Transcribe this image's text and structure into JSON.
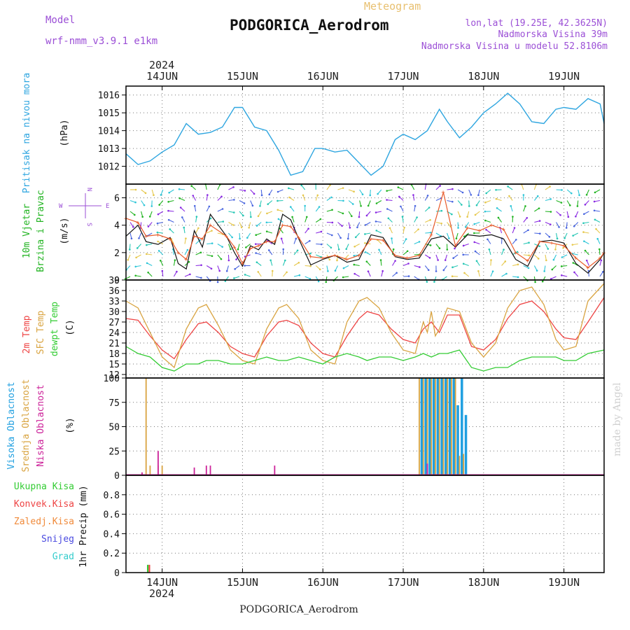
{
  "header": {
    "meteogram_label": "Meteogram",
    "model_label": "Model",
    "model_name": "wrf-nmm_v3.9.1  e1km",
    "station": "PODGORICA_Aerodrom",
    "lonlat": "lon,lat (19.25E, 42.3625N)",
    "elevation": "Nadmorska Visina 39m",
    "model_elevation": "Nadmorska Visina u modelu 52.8106m",
    "footer_station": "PODGORICA_Aerodrom",
    "watermark": "made by Angel",
    "year_top": "2024",
    "year_bottom": "2024"
  },
  "colors": {
    "pressure": "#2fa6e0",
    "wind_label": "#22b422",
    "temp2m": "#ee4444",
    "sfc_temp": "#d9a441",
    "dewpt": "#33cc33",
    "high_cloud": "#1f9fe0",
    "mid_cloud": "#d9a441",
    "low_cloud": "#cc2299",
    "accent_purple": "#9b4fd6",
    "meteogram_title": "#e8c070"
  },
  "chart_data": [
    {
      "type": "line",
      "name": "pressure",
      "labels": [
        "Pritisak na nivou mora",
        "(hPa)"
      ],
      "ylim": [
        1011,
        1016.5
      ],
      "yticks": [
        1012,
        1013,
        1014,
        1015,
        1016
      ],
      "x_ticks": [
        "14JUN",
        "15JUN",
        "16JUN",
        "17JUN",
        "18JUN",
        "19JUN"
      ],
      "x": [
        13.55,
        13.7,
        13.85,
        14.0,
        14.15,
        14.3,
        14.45,
        14.6,
        14.75,
        14.9,
        15.0,
        15.15,
        15.3,
        15.45,
        15.6,
        15.75,
        15.9,
        16.0,
        16.15,
        16.3,
        16.45,
        16.6,
        16.75,
        16.9,
        17.0,
        17.15,
        17.3,
        17.45,
        17.55,
        17.7,
        17.85,
        18.0,
        18.15,
        18.3,
        18.45,
        18.6,
        18.75,
        18.9,
        19.0,
        19.15,
        19.3,
        19.45,
        19.5
      ],
      "values": [
        1012.7,
        1012.1,
        1012.3,
        1012.8,
        1013.2,
        1014.4,
        1013.8,
        1013.9,
        1014.2,
        1015.3,
        1015.3,
        1014.2,
        1014.0,
        1012.9,
        1011.5,
        1011.7,
        1013.0,
        1013.0,
        1012.8,
        1012.9,
        1012.2,
        1011.5,
        1012.0,
        1013.5,
        1013.8,
        1013.5,
        1014.0,
        1015.2,
        1014.5,
        1013.6,
        1014.2,
        1015.0,
        1015.5,
        1016.1,
        1015.5,
        1014.5,
        1014.4,
        1015.2,
        1015.3,
        1015.2,
        1015.8,
        1015.5,
        1014.4
      ]
    },
    {
      "type": "line",
      "name": "wind",
      "labels": [
        "10m Vjetar",
        "Brzina i Pravac",
        "(m/s)"
      ],
      "compass": [
        "N",
        "W",
        "E",
        "S"
      ],
      "ylim": [
        0,
        7
      ],
      "yticks": [
        0,
        2,
        4,
        6
      ],
      "series": [
        {
          "x": [
            13.55,
            13.7,
            13.8,
            13.95,
            14.1,
            14.2,
            14.3,
            14.4,
            14.5,
            14.6,
            14.8,
            14.9,
            15.0,
            15.1,
            15.2,
            15.3,
            15.4,
            15.5,
            15.6,
            15.7,
            15.85,
            16.0,
            16.15,
            16.3,
            16.45,
            16.6,
            16.75,
            16.9,
            17.05,
            17.2,
            17.35,
            17.5,
            17.65,
            17.8,
            17.95,
            18.1,
            18.25,
            18.4,
            18.55,
            18.7,
            18.85,
            19.0,
            19.15,
            19.3,
            19.45,
            19.5
          ],
          "values": [
            3.2,
            4.0,
            2.8,
            2.6,
            3.1,
            1.2,
            0.8,
            3.6,
            2.4,
            4.8,
            3.2,
            2.0,
            1.0,
            2.5,
            2.2,
            3.0,
            2.6,
            4.8,
            4.4,
            3.0,
            1.1,
            1.5,
            1.8,
            1.3,
            1.5,
            3.3,
            3.1,
            1.7,
            1.5,
            1.6,
            3.0,
            3.2,
            2.4,
            3.3,
            3.2,
            3.3,
            3.0,
            1.5,
            1.0,
            2.8,
            2.9,
            2.7,
            1.2,
            0.5,
            1.5,
            2.0
          ]
        },
        {
          "x": [
            13.55,
            13.7,
            13.8,
            13.95,
            14.1,
            14.2,
            14.3,
            14.4,
            14.5,
            14.6,
            14.8,
            14.9,
            15.0,
            15.1,
            15.2,
            15.3,
            15.4,
            15.5,
            15.6,
            15.7,
            15.85,
            16.0,
            16.15,
            16.3,
            16.45,
            16.6,
            16.75,
            16.9,
            17.05,
            17.2,
            17.35,
            17.5,
            17.65,
            17.8,
            17.95,
            18.1,
            18.25,
            18.4,
            18.55,
            18.7,
            18.85,
            19.0,
            19.15,
            19.3,
            19.45,
            19.5
          ],
          "values": [
            4.5,
            4.2,
            3.2,
            3.3,
            3.0,
            2.0,
            1.5,
            3.2,
            3.0,
            4.0,
            3.2,
            2.4,
            1.2,
            2.3,
            2.5,
            2.8,
            2.8,
            4.0,
            3.9,
            3.1,
            1.7,
            1.6,
            1.8,
            1.5,
            1.8,
            3.0,
            2.9,
            1.8,
            1.6,
            1.8,
            3.3,
            6.4,
            2.5,
            3.8,
            3.6,
            4.0,
            3.7,
            2.0,
            1.4,
            2.8,
            2.7,
            2.5,
            1.6,
            0.9,
            1.6,
            2.0
          ]
        }
      ]
    },
    {
      "type": "line",
      "name": "temperature",
      "labels": [
        "2m Temp",
        "SFC Temp",
        "dewpt Temp",
        "(C)"
      ],
      "ylim": [
        11,
        39
      ],
      "yticks": [
        12,
        15,
        18,
        21,
        24,
        27,
        30,
        33,
        36,
        39
      ],
      "series": [
        {
          "name": "2m Temp",
          "x": [
            13.55,
            13.7,
            13.85,
            14.0,
            14.15,
            14.3,
            14.45,
            14.55,
            14.7,
            14.85,
            15.0,
            15.15,
            15.3,
            15.45,
            15.55,
            15.7,
            15.85,
            16.0,
            16.15,
            16.3,
            16.45,
            16.55,
            16.7,
            16.85,
            17.0,
            17.15,
            17.25,
            17.35,
            17.45,
            17.55,
            17.7,
            17.85,
            18.0,
            18.15,
            18.3,
            18.45,
            18.6,
            18.75,
            18.9,
            19.0,
            19.15,
            19.3,
            19.5
          ],
          "values": [
            28,
            27.5,
            23,
            19,
            16.5,
            22,
            26.5,
            27,
            24,
            20,
            18,
            17,
            23,
            27,
            27.5,
            26,
            21,
            18,
            17,
            23,
            28,
            30,
            29,
            25,
            22,
            21,
            25,
            27,
            24,
            29,
            29,
            20,
            19,
            22,
            28,
            32,
            33,
            30,
            25,
            22.5,
            22,
            27,
            34
          ]
        },
        {
          "name": "SFC Temp",
          "x": [
            13.55,
            13.7,
            13.85,
            14.0,
            14.15,
            14.3,
            14.45,
            14.55,
            14.7,
            14.85,
            15.0,
            15.15,
            15.3,
            15.45,
            15.55,
            15.7,
            15.85,
            16.0,
            16.15,
            16.3,
            16.45,
            16.55,
            16.7,
            16.85,
            17.0,
            17.15,
            17.25,
            17.3,
            17.35,
            17.4,
            17.45,
            17.55,
            17.7,
            17.85,
            18.0,
            18.15,
            18.3,
            18.45,
            18.6,
            18.75,
            18.9,
            19.0,
            19.15,
            19.3,
            19.5
          ],
          "values": [
            33,
            31,
            24,
            17,
            14,
            25,
            31,
            32,
            26,
            19,
            16,
            15,
            25,
            31,
            32,
            28,
            19,
            16,
            15,
            27,
            33,
            34,
            31,
            24,
            19,
            18,
            27,
            24,
            30,
            23,
            25,
            31,
            30,
            21,
            17,
            21,
            31,
            36,
            37,
            32,
            22,
            19,
            20,
            33,
            38
          ]
        },
        {
          "name": "dewpt Temp",
          "x": [
            13.55,
            13.7,
            13.85,
            14.0,
            14.15,
            14.3,
            14.45,
            14.55,
            14.7,
            14.85,
            15.0,
            15.15,
            15.3,
            15.45,
            15.55,
            15.7,
            15.85,
            16.0,
            16.15,
            16.3,
            16.45,
            16.55,
            16.7,
            16.85,
            17.0,
            17.15,
            17.25,
            17.35,
            17.45,
            17.55,
            17.7,
            17.85,
            18.0,
            18.15,
            18.3,
            18.45,
            18.6,
            18.75,
            18.9,
            19.0,
            19.15,
            19.3,
            19.5
          ],
          "values": [
            20,
            18,
            17,
            14,
            13,
            15,
            15,
            16,
            16,
            15,
            15,
            16,
            17,
            16,
            16,
            17,
            16,
            15,
            17,
            18,
            17,
            16,
            17,
            17,
            16,
            17,
            18,
            17,
            18,
            18,
            19,
            14,
            13,
            14,
            14,
            16,
            17,
            17,
            17,
            16,
            16,
            18,
            19
          ]
        }
      ]
    },
    {
      "type": "bar",
      "name": "cloud",
      "labels": [
        "Visoka Oblacnost",
        "Srednja Oblacnost",
        "Niska Oblacnost",
        "(%)"
      ],
      "ylim": [
        0,
        100
      ],
      "yticks": [
        0,
        25,
        50,
        75,
        100
      ],
      "series": [
        {
          "name": "Visoka Oblacnost",
          "x": [
            17.23,
            17.28,
            17.33,
            17.38,
            17.43,
            17.48,
            17.53,
            17.58,
            17.63,
            17.68,
            17.73,
            17.78
          ],
          "values": [
            100,
            100,
            100,
            100,
            100,
            100,
            100,
            100,
            100,
            72,
            100,
            62
          ]
        },
        {
          "name": "Srednja Oblacnost",
          "x": [
            13.8,
            13.85,
            13.95,
            14.0,
            17.2,
            17.25,
            17.3,
            17.35,
            17.4,
            17.45,
            17.5,
            17.55,
            17.6,
            17.65,
            17.7,
            17.75
          ],
          "values": [
            100,
            10,
            10,
            10,
            100,
            100,
            100,
            100,
            100,
            100,
            100,
            100,
            100,
            100,
            20,
            22
          ]
        },
        {
          "name": "Niska Oblacnost",
          "x": [
            13.75,
            13.95,
            14.4,
            14.55,
            14.6,
            15.4,
            17.3
          ],
          "values": [
            3,
            25,
            8,
            10,
            10,
            10,
            12
          ]
        }
      ]
    },
    {
      "type": "bar",
      "name": "precip",
      "labels": [
        "Ukupna Kisa",
        "Konvek.Kisa",
        "Zaledj.Kisa",
        "Snijeg",
        "Grad",
        "1hr Precip (mm)"
      ],
      "ylim": [
        0,
        1.0
      ],
      "yticks": [
        0,
        0.2,
        0.4,
        0.6,
        0.8
      ],
      "series": [
        {
          "name": "Ukupna Kisa",
          "x": [
            13.82
          ],
          "values": [
            0.08
          ]
        },
        {
          "name": "Konvek.Kisa",
          "x": [
            13.84
          ],
          "values": [
            0.08
          ]
        }
      ]
    }
  ]
}
